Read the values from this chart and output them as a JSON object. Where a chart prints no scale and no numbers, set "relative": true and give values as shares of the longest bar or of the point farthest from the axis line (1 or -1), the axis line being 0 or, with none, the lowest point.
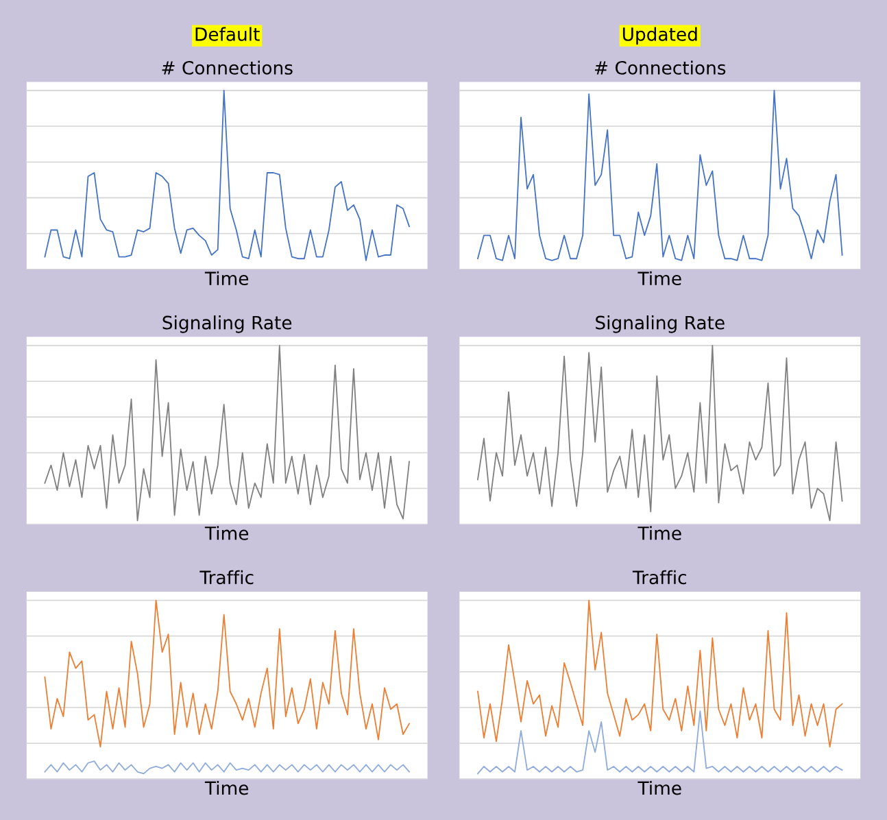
{
  "chart_data": [
    {
      "type": "line",
      "relative": true,
      "title": "# Connections",
      "xlabel": "Time",
      "annotations": [
        "Default"
      ],
      "grid": "y",
      "tick_labels": false,
      "categories": [
        null,
        null,
        null,
        null,
        null,
        null,
        null,
        null,
        null,
        null,
        null,
        null,
        null,
        null,
        null,
        null,
        null,
        null,
        null,
        null,
        null,
        null,
        null,
        null,
        null,
        null,
        null,
        null,
        null,
        null,
        null,
        null,
        null,
        null,
        null,
        null,
        null,
        null,
        null,
        null,
        null,
        null,
        null,
        null,
        null,
        null,
        null,
        null,
        null,
        null,
        null,
        null,
        null,
        null,
        null,
        null,
        null,
        null,
        null,
        null
      ],
      "series": [
        {
          "color": "#4472c4",
          "values": [
            0.07,
            0.22,
            0.22,
            0.07,
            0.06,
            0.22,
            0.07,
            0.52,
            0.54,
            0.28,
            0.22,
            0.21,
            0.07,
            0.07,
            0.08,
            0.22,
            0.21,
            0.23,
            0.54,
            0.52,
            0.48,
            0.23,
            0.09,
            0.22,
            0.23,
            0.19,
            0.16,
            0.08,
            0.11,
            1.0,
            0.34,
            0.22,
            0.07,
            0.06,
            0.22,
            0.07,
            0.54,
            0.54,
            0.53,
            0.23,
            0.07,
            0.06,
            0.06,
            0.22,
            0.07,
            0.07,
            0.22,
            0.46,
            0.49,
            0.33,
            0.36,
            0.28,
            0.05,
            0.22,
            0.07,
            0.08,
            0.08,
            0.36,
            0.34,
            0.24
          ]
        }
      ]
    },
    {
      "type": "line",
      "relative": true,
      "title": "# Connections",
      "xlabel": "Time",
      "annotations": [
        "Updated"
      ],
      "grid": "y",
      "tick_labels": false,
      "categories": [
        null,
        null,
        null,
        null,
        null,
        null,
        null,
        null,
        null,
        null,
        null,
        null,
        null,
        null,
        null,
        null,
        null,
        null,
        null,
        null,
        null,
        null,
        null,
        null,
        null,
        null,
        null,
        null,
        null,
        null,
        null,
        null,
        null,
        null,
        null,
        null,
        null,
        null,
        null,
        null,
        null,
        null,
        null,
        null,
        null,
        null,
        null,
        null,
        null,
        null,
        null,
        null,
        null,
        null,
        null,
        null,
        null,
        null,
        null,
        null
      ],
      "series": [
        {
          "color": "#4472c4",
          "values": [
            0.06,
            0.19,
            0.19,
            0.06,
            0.05,
            0.19,
            0.06,
            0.85,
            0.45,
            0.53,
            0.19,
            0.06,
            0.05,
            0.06,
            0.19,
            0.06,
            0.06,
            0.19,
            0.98,
            0.47,
            0.53,
            0.78,
            0.19,
            0.19,
            0.06,
            0.07,
            0.32,
            0.19,
            0.3,
            0.59,
            0.07,
            0.19,
            0.06,
            0.05,
            0.19,
            0.06,
            0.64,
            0.47,
            0.55,
            0.19,
            0.06,
            0.06,
            0.05,
            0.19,
            0.06,
            0.06,
            0.05,
            0.19,
            1.0,
            0.45,
            0.62,
            0.34,
            0.3,
            0.19,
            0.06,
            0.22,
            0.15,
            0.38,
            0.53,
            0.08
          ]
        }
      ]
    },
    {
      "type": "line",
      "relative": true,
      "title": "Signaling Rate",
      "xlabel": "Time",
      "grid": "y",
      "tick_labels": false,
      "categories": [
        null,
        null,
        null,
        null,
        null,
        null,
        null,
        null,
        null,
        null,
        null,
        null,
        null,
        null,
        null,
        null,
        null,
        null,
        null,
        null,
        null,
        null,
        null,
        null,
        null,
        null,
        null,
        null,
        null,
        null,
        null,
        null,
        null,
        null,
        null,
        null,
        null,
        null,
        null,
        null,
        null,
        null,
        null,
        null,
        null,
        null,
        null,
        null,
        null,
        null,
        null,
        null,
        null,
        null,
        null,
        null,
        null,
        null,
        null,
        null
      ],
      "series": [
        {
          "color": "#7f7f7f",
          "values": [
            0.23,
            0.33,
            0.19,
            0.4,
            0.21,
            0.36,
            0.15,
            0.44,
            0.31,
            0.44,
            0.09,
            0.5,
            0.23,
            0.33,
            0.7,
            0.02,
            0.31,
            0.15,
            0.92,
            0.38,
            0.68,
            0.05,
            0.42,
            0.19,
            0.35,
            0.05,
            0.38,
            0.17,
            0.33,
            0.67,
            0.23,
            0.11,
            0.4,
            0.09,
            0.23,
            0.15,
            0.45,
            0.23,
            1.0,
            0.23,
            0.38,
            0.17,
            0.39,
            0.11,
            0.33,
            0.15,
            0.27,
            0.89,
            0.31,
            0.23,
            0.87,
            0.25,
            0.4,
            0.19,
            0.4,
            0.09,
            0.38,
            0.11,
            0.03,
            0.35
          ]
        }
      ]
    },
    {
      "type": "line",
      "relative": true,
      "title": "Signaling Rate",
      "xlabel": "Time",
      "grid": "y",
      "tick_labels": false,
      "categories": [
        null,
        null,
        null,
        null,
        null,
        null,
        null,
        null,
        null,
        null,
        null,
        null,
        null,
        null,
        null,
        null,
        null,
        null,
        null,
        null,
        null,
        null,
        null,
        null,
        null,
        null,
        null,
        null,
        null,
        null,
        null,
        null,
        null,
        null,
        null,
        null,
        null,
        null,
        null,
        null,
        null,
        null,
        null,
        null,
        null,
        null,
        null,
        null,
        null,
        null,
        null,
        null,
        null,
        null,
        null,
        null,
        null,
        null,
        null,
        null
      ],
      "series": [
        {
          "color": "#7f7f7f",
          "values": [
            0.25,
            0.48,
            0.13,
            0.4,
            0.27,
            0.74,
            0.33,
            0.5,
            0.27,
            0.4,
            0.17,
            0.43,
            0.1,
            0.4,
            0.94,
            0.36,
            0.1,
            0.4,
            0.96,
            0.46,
            0.88,
            0.18,
            0.3,
            0.38,
            0.2,
            0.53,
            0.15,
            0.5,
            0.07,
            0.83,
            0.36,
            0.5,
            0.2,
            0.27,
            0.4,
            0.18,
            0.68,
            0.23,
            1.0,
            0.12,
            0.45,
            0.3,
            0.33,
            0.17,
            0.46,
            0.36,
            0.43,
            0.79,
            0.27,
            0.33,
            0.93,
            0.17,
            0.36,
            0.46,
            0.09,
            0.2,
            0.17,
            0.02,
            0.46,
            0.13
          ]
        }
      ]
    },
    {
      "type": "line",
      "relative": true,
      "title": "Traffic",
      "xlabel": "Time",
      "grid": "y",
      "tick_labels": false,
      "categories": [
        null,
        null,
        null,
        null,
        null,
        null,
        null,
        null,
        null,
        null,
        null,
        null,
        null,
        null,
        null,
        null,
        null,
        null,
        null,
        null,
        null,
        null,
        null,
        null,
        null,
        null,
        null,
        null,
        null,
        null,
        null,
        null,
        null,
        null,
        null,
        null,
        null,
        null,
        null,
        null,
        null,
        null,
        null,
        null,
        null,
        null,
        null,
        null,
        null,
        null,
        null,
        null,
        null,
        null,
        null,
        null,
        null,
        null,
        null,
        null
      ],
      "series": [
        {
          "color": "#ed7d31",
          "values": [
            0.57,
            0.28,
            0.45,
            0.35,
            0.71,
            0.62,
            0.66,
            0.33,
            0.36,
            0.18,
            0.49,
            0.28,
            0.51,
            0.29,
            0.77,
            0.59,
            0.29,
            0.42,
            1.0,
            0.71,
            0.81,
            0.25,
            0.54,
            0.29,
            0.48,
            0.25,
            0.42,
            0.28,
            0.49,
            0.92,
            0.49,
            0.42,
            0.33,
            0.45,
            0.29,
            0.48,
            0.62,
            0.28,
            0.84,
            0.35,
            0.51,
            0.31,
            0.39,
            0.56,
            0.28,
            0.54,
            0.42,
            0.83,
            0.48,
            0.36,
            0.84,
            0.48,
            0.28,
            0.42,
            0.22,
            0.51,
            0.39,
            0.42,
            0.25,
            0.31
          ]
        },
        {
          "color": "#8faadc",
          "values": [
            0.04,
            0.08,
            0.04,
            0.09,
            0.05,
            0.08,
            0.04,
            0.09,
            0.1,
            0.05,
            0.08,
            0.04,
            0.09,
            0.05,
            0.08,
            0.04,
            0.03,
            0.06,
            0.07,
            0.06,
            0.08,
            0.04,
            0.09,
            0.05,
            0.09,
            0.04,
            0.09,
            0.05,
            0.08,
            0.04,
            0.09,
            0.05,
            0.06,
            0.05,
            0.08,
            0.04,
            0.08,
            0.04,
            0.08,
            0.05,
            0.08,
            0.04,
            0.08,
            0.05,
            0.08,
            0.04,
            0.08,
            0.04,
            0.08,
            0.05,
            0.08,
            0.04,
            0.08,
            0.04,
            0.08,
            0.04,
            0.08,
            0.05,
            0.08,
            0.04
          ]
        }
      ]
    },
    {
      "type": "line",
      "relative": true,
      "title": "Traffic",
      "xlabel": "Time",
      "grid": "y",
      "tick_labels": false,
      "categories": [
        null,
        null,
        null,
        null,
        null,
        null,
        null,
        null,
        null,
        null,
        null,
        null,
        null,
        null,
        null,
        null,
        null,
        null,
        null,
        null,
        null,
        null,
        null,
        null,
        null,
        null,
        null,
        null,
        null,
        null,
        null,
        null,
        null,
        null,
        null,
        null,
        null,
        null,
        null,
        null,
        null,
        null,
        null,
        null,
        null,
        null,
        null,
        null,
        null,
        null,
        null,
        null,
        null,
        null,
        null,
        null,
        null,
        null,
        null,
        null
      ],
      "series": [
        {
          "color": "#ed7d31",
          "values": [
            0.49,
            0.23,
            0.42,
            0.21,
            0.45,
            0.75,
            0.54,
            0.32,
            0.55,
            0.42,
            0.47,
            0.24,
            0.41,
            0.29,
            0.65,
            0.54,
            0.42,
            0.3,
            1.0,
            0.61,
            0.82,
            0.48,
            0.36,
            0.24,
            0.45,
            0.33,
            0.36,
            0.42,
            0.27,
            0.81,
            0.39,
            0.33,
            0.45,
            0.27,
            0.52,
            0.3,
            0.72,
            0.27,
            0.79,
            0.39,
            0.3,
            0.42,
            0.23,
            0.51,
            0.33,
            0.42,
            0.23,
            0.83,
            0.39,
            0.33,
            0.93,
            0.3,
            0.47,
            0.24,
            0.42,
            0.3,
            0.42,
            0.18,
            0.39,
            0.42
          ]
        },
        {
          "color": "#8faadc",
          "values": [
            0.03,
            0.07,
            0.04,
            0.07,
            0.04,
            0.07,
            0.04,
            0.27,
            0.05,
            0.07,
            0.04,
            0.07,
            0.04,
            0.07,
            0.04,
            0.07,
            0.04,
            0.05,
            0.27,
            0.15,
            0.32,
            0.05,
            0.07,
            0.04,
            0.07,
            0.04,
            0.07,
            0.04,
            0.07,
            0.04,
            0.07,
            0.04,
            0.07,
            0.04,
            0.07,
            0.04,
            0.38,
            0.06,
            0.07,
            0.04,
            0.07,
            0.04,
            0.07,
            0.04,
            0.07,
            0.04,
            0.07,
            0.04,
            0.07,
            0.04,
            0.07,
            0.04,
            0.07,
            0.04,
            0.07,
            0.04,
            0.07,
            0.04,
            0.07,
            0.05
          ]
        }
      ]
    }
  ]
}
